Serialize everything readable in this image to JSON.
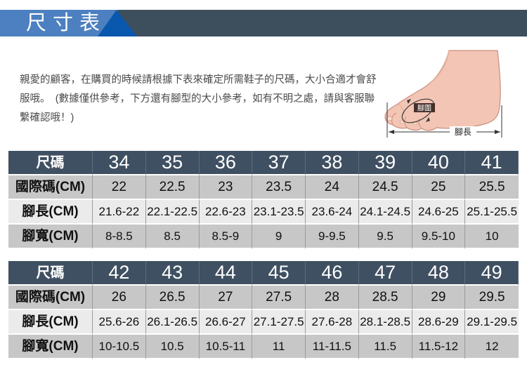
{
  "banner": {
    "title": "尺寸表"
  },
  "intro": {
    "text": "親愛的顧客，在購買的時候請根據下表來確定所需鞋子的尺碼，大小合適才會舒服哦。　(數據僅供參考，下方還有腳型的大小參考，如有不明之處，請與客服聯繫確認哦！)"
  },
  "foot_diagram": {
    "girth_label": "腳圍",
    "length_label": "腳長"
  },
  "colors": {
    "banner_blue": "#4c80c0",
    "banner_triangle": "#0a57ae",
    "banner_slate": "#3d4e5d",
    "table_header_bg": "#3f5062",
    "row_gray": "#c7c7c7",
    "row_light": "#ebebeb",
    "skin": "#f3c5b4"
  },
  "tables": [
    {
      "rows": [
        {
          "label": "尺碼",
          "values": [
            "34",
            "35",
            "36",
            "37",
            "38",
            "39",
            "40",
            "41"
          ]
        },
        {
          "label": "國際碼(CM)",
          "values": [
            "22",
            "22.5",
            "23",
            "23.5",
            "24",
            "24.5",
            "25",
            "25.5"
          ]
        },
        {
          "label": "腳長(CM)",
          "values": [
            "21.6-22",
            "22.1-22.5",
            "22.6-23",
            "23.1-23.5",
            "23.6-24",
            "24.1-24.5",
            "24.6-25",
            "25.1-25.5"
          ]
        },
        {
          "label": "腳寬(CM)",
          "values": [
            "8-8.5",
            "8.5",
            "8.5-9",
            "9",
            "9-9.5",
            "9.5",
            "9.5-10",
            "10"
          ]
        }
      ]
    },
    {
      "rows": [
        {
          "label": "尺碼",
          "values": [
            "42",
            "43",
            "44",
            "45",
            "46",
            "47",
            "48",
            "49"
          ]
        },
        {
          "label": "國際碼(CM)",
          "values": [
            "26",
            "26.5",
            "27",
            "27.5",
            "28",
            "28.5",
            "29",
            "29.5"
          ]
        },
        {
          "label": "腳長(CM)",
          "values": [
            "25.6-26",
            "26.1-26.5",
            "26.6-27",
            "27.1-27.5",
            "27.6-28",
            "28.1-28.5",
            "28.6-29",
            "29.1-29.5"
          ]
        },
        {
          "label": "腳寬(CM)",
          "values": [
            "10-10.5",
            "10.5",
            "10.5-11",
            "11",
            "11-11.5",
            "11.5",
            "11.5-12",
            "12"
          ]
        }
      ]
    }
  ]
}
